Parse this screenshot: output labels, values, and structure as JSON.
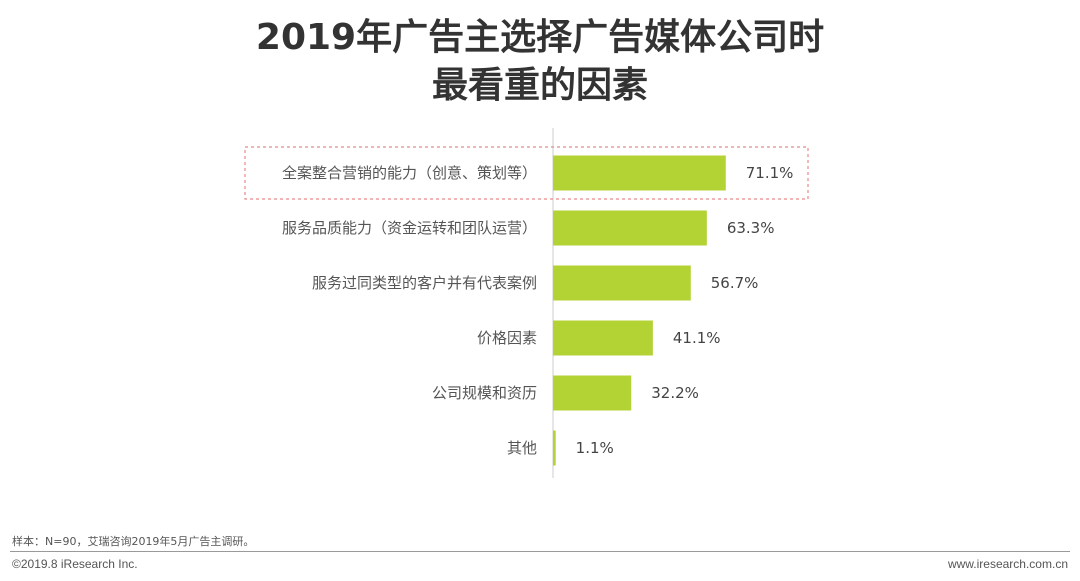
{
  "page": {
    "title_line1": "2019年广告主选择广告媒体公司时",
    "title_line2": "最看重的因素"
  },
  "chart_data": {
    "type": "bar",
    "orientation": "horizontal",
    "categories": [
      "全案整合营销的能力（创意、策划等）",
      "服务品质能力（资金运转和团队运营）",
      "服务过同类型的客户并有代表案例",
      "价格因素",
      "公司规模和资历",
      "其他"
    ],
    "values": [
      71.1,
      63.3,
      56.7,
      41.1,
      32.2,
      1.1
    ],
    "value_labels": [
      "71.1%",
      "63.3%",
      "56.7%",
      "41.1%",
      "32.2%",
      "1.1%"
    ],
    "unit": "%",
    "xlim": [
      0,
      100
    ],
    "highlighted_category_index": 0,
    "colors": {
      "bar": "#b3d234",
      "highlight_border": "#e88a8a",
      "axis": "#cccccc"
    }
  },
  "footer": {
    "note": "样本：N=90，艾瑞咨询2019年5月广告主调研。",
    "copyright": "©2019.8 iResearch Inc.",
    "url": "www.iresearch.com.cn"
  }
}
